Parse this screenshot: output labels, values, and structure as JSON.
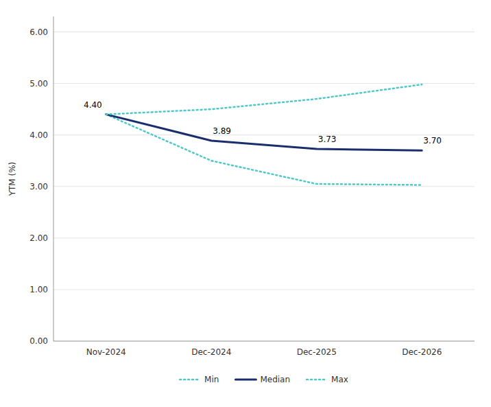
{
  "chart_data": {
    "type": "line",
    "categories": [
      "Nov-2024",
      "Dec-2024",
      "Dec-2025",
      "Dec-2026"
    ],
    "series": [
      {
        "name": "Min",
        "color": "#4dc8c8",
        "line_style": "dotted",
        "values": [
          4.4,
          3.5,
          3.05,
          3.03
        ]
      },
      {
        "name": "Median",
        "color": "#1a2e6e",
        "line_style": "solid",
        "values": [
          4.4,
          3.89,
          3.73,
          3.7
        ],
        "data_labels": true,
        "value_labels": [
          "4.40",
          "3.89",
          "3.73",
          "3.70"
        ]
      },
      {
        "name": "Max",
        "color": "#4dc8c8",
        "line_style": "dotted",
        "values": [
          4.4,
          4.5,
          4.7,
          4.98
        ]
      }
    ],
    "y_label": "YTM (%)",
    "ylim": [
      0.0,
      6.3
    ],
    "yticks": [
      {
        "value": 0.0,
        "label": "0.00"
      },
      {
        "value": 1.0,
        "label": "1.00"
      },
      {
        "value": 2.0,
        "label": "2.00"
      },
      {
        "value": 3.0,
        "label": "3.00"
      },
      {
        "value": 4.0,
        "label": "4.00"
      },
      {
        "value": 5.0,
        "label": "5.00"
      },
      {
        "value": 6.0,
        "label": "6.00"
      }
    ],
    "grid": true,
    "legend": "bottom"
  }
}
